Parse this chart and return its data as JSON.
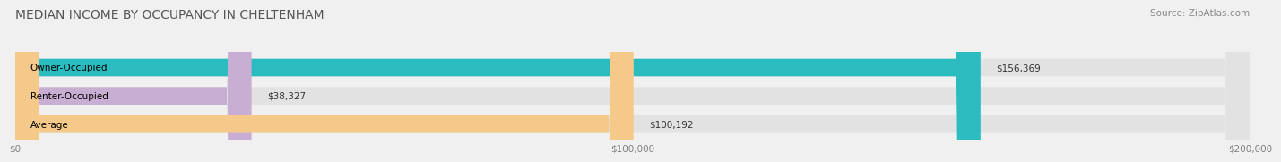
{
  "title": "MEDIAN INCOME BY OCCUPANCY IN CHELTENHAM",
  "source": "Source: ZipAtlas.com",
  "categories": [
    "Owner-Occupied",
    "Renter-Occupied",
    "Average"
  ],
  "values": [
    156369,
    38327,
    100192
  ],
  "bar_colors": [
    "#2bbcbf",
    "#c9aed4",
    "#f5c98a"
  ],
  "bar_labels": [
    "$156,369",
    "$38,327",
    "$100,192"
  ],
  "xlim": [
    0,
    200000
  ],
  "xticks": [
    0,
    100000,
    200000
  ],
  "xtick_labels": [
    "$0",
    "$100,000",
    "$200,000"
  ],
  "background_color": "#f0f0f0",
  "bar_bg_color": "#e2e2e2",
  "title_fontsize": 10,
  "source_fontsize": 7.5,
  "label_fontsize": 7.5,
  "tick_fontsize": 7.5
}
